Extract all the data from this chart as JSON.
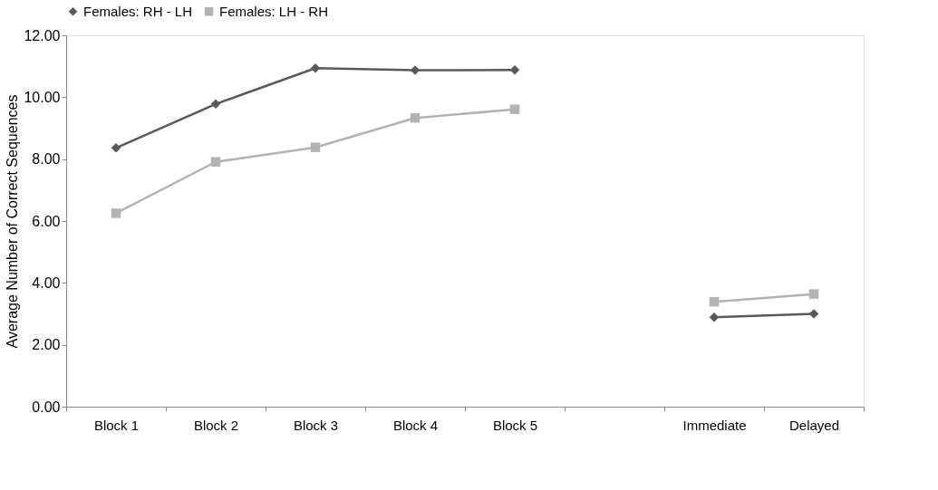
{
  "chart_data": {
    "type": "line",
    "ylabel": "Average Number of Correct Sequences",
    "categories": [
      "Block 1",
      "Block 2",
      "Block 3",
      "Block 4",
      "Block 5",
      null,
      "Immediate",
      "Delayed"
    ],
    "series": [
      {
        "name": "Females: RH - LH",
        "color": "#595959",
        "marker": "diamond",
        "values": [
          8.36,
          9.78,
          10.94,
          10.87,
          10.88,
          null,
          2.89,
          3.0
        ]
      },
      {
        "name": "Females: LH - RH",
        "color": "#b3b3b3",
        "marker": "square",
        "values": [
          6.25,
          7.91,
          8.38,
          9.33,
          9.61,
          null,
          3.39,
          3.64
        ]
      }
    ],
    "ylim": [
      0,
      12
    ],
    "yticks": [
      {
        "value": 0,
        "label": "0.00"
      },
      {
        "value": 2,
        "label": "2.00"
      },
      {
        "value": 4,
        "label": "4.00"
      },
      {
        "value": 6,
        "label": "6.00"
      },
      {
        "value": 8,
        "label": "8.00"
      },
      {
        "value": 10,
        "label": "10.00"
      },
      {
        "value": 12,
        "label": "12.00"
      }
    ],
    "grid": false,
    "legend": "top",
    "line_style": "solid"
  }
}
